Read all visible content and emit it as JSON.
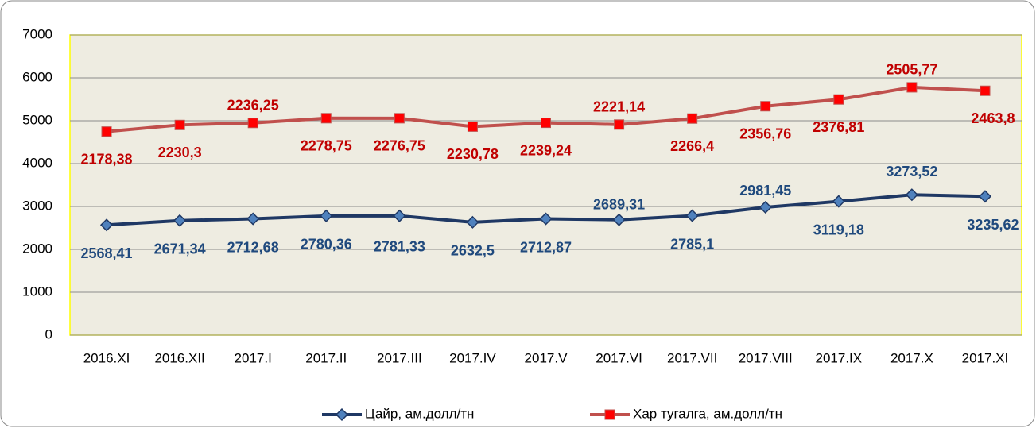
{
  "chart_data": {
    "type": "line",
    "stacked": true,
    "categories": [
      "2016.XI",
      "2016.XII",
      "2017.I",
      "2017.II",
      "2017.III",
      "2017.IV",
      "2017.V",
      "2017.VI",
      "2017.VII",
      "2017.VIII",
      "2017.IX",
      "2017.X",
      "2017.XI"
    ],
    "series": [
      {
        "name": "Цайр, ам.долл/тн",
        "color": "#1f3864",
        "marker_color": "#4f81bd",
        "marker": "diamond",
        "values": [
          2568.41,
          2671.34,
          2712.68,
          2780.36,
          2781.33,
          2632.5,
          2712.87,
          2689.31,
          2785.1,
          2981.45,
          3119.18,
          3273.52,
          3235.62
        ],
        "value_labels": [
          "2568,41",
          "2671,34",
          "2712,68",
          "2780,36",
          "2781,33",
          "2632,5",
          "2712,87",
          "2689,31",
          "2785,1",
          "2981,45",
          "3119,18",
          "3273,52",
          "3235,62"
        ]
      },
      {
        "name": "Хар тугалга, ам.долл/тн",
        "color": "#c0504d",
        "marker_color": "#ff0000",
        "marker": "square",
        "values": [
          2178.38,
          2230.3,
          2236.25,
          2278.75,
          2276.75,
          2230.78,
          2239.24,
          2221.14,
          2266.4,
          2356.76,
          2376.81,
          2505.77,
          2463.8
        ],
        "value_labels": [
          "2178,38",
          "2230,3",
          "2236,25",
          "2278,75",
          "2276,75",
          "2230,78",
          "2239,24",
          "2221,14",
          "2266,4",
          "2356,76",
          "2376,81",
          "2505,77",
          "2463,8"
        ]
      }
    ],
    "ylim": [
      0,
      7000
    ],
    "yticks": [
      0,
      1000,
      2000,
      3000,
      4000,
      5000,
      6000,
      7000
    ],
    "grid": true,
    "legend": "bottom"
  }
}
